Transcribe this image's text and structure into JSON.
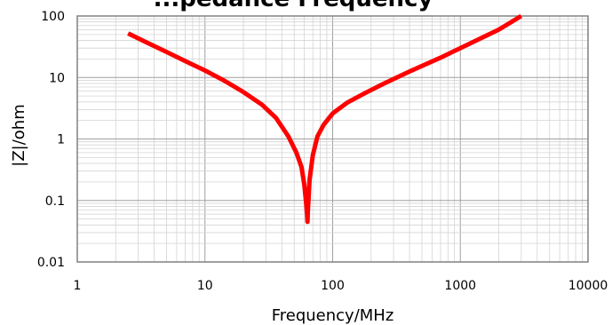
{
  "chart_data": {
    "type": "line",
    "title": "...pedance Frequency",
    "xlabel": "Frequency/MHz",
    "ylabel": "|Z|/ohm",
    "x_scale": "log",
    "y_scale": "log",
    "xlim": [
      1,
      10000
    ],
    "ylim": [
      0.01,
      100
    ],
    "x_ticks": [
      "1",
      "10",
      "100",
      "1000",
      "10000"
    ],
    "y_ticks": [
      "0.01",
      "0.1",
      "1",
      "10",
      "100"
    ],
    "grid": true,
    "series": [
      {
        "color": "#ff0000",
        "x": [
          2.5,
          3.5,
          5,
          7,
          10,
          14,
          20,
          28,
          36,
          45,
          52,
          57,
          60,
          62,
          63,
          63.5,
          64,
          66,
          70,
          76,
          85,
          100,
          130,
          180,
          250,
          400,
          700,
          1000,
          1500,
          2000,
          3000
        ],
        "y": [
          52,
          37,
          26,
          18.5,
          13,
          9,
          5.8,
          3.6,
          2.2,
          1.1,
          0.6,
          0.35,
          0.18,
          0.09,
          0.06,
          0.045,
          0.07,
          0.22,
          0.55,
          1.1,
          1.7,
          2.6,
          3.9,
          5.6,
          7.9,
          12.5,
          21,
          30,
          45,
          60,
          100
        ]
      }
    ]
  }
}
